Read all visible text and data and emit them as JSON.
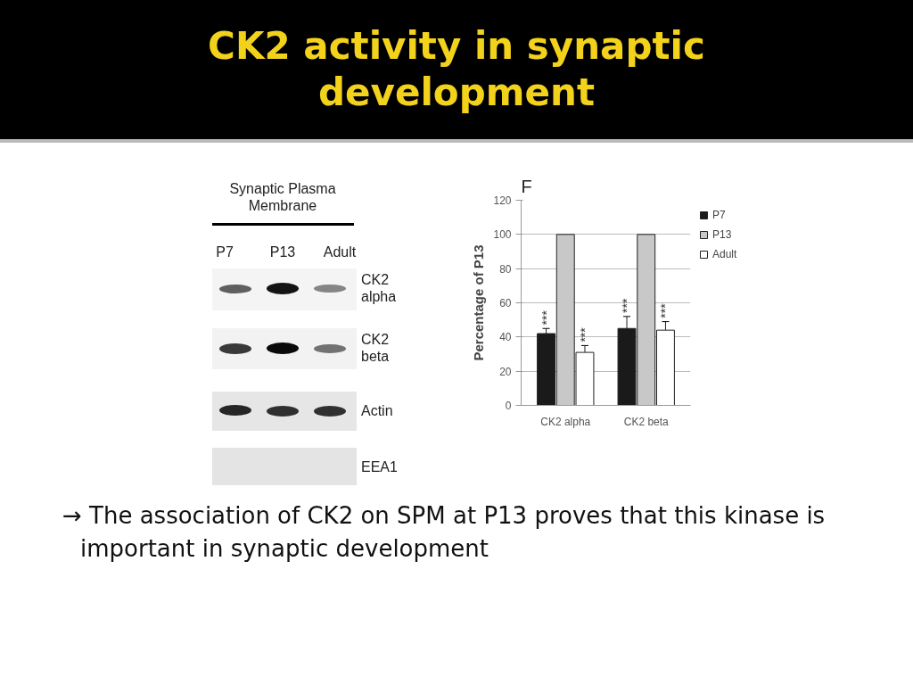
{
  "chart_data": {
    "type": "bar",
    "title": "CK2 activity in  synaptic development",
    "categories": [
      "CK2 alpha",
      "CK2 beta"
    ],
    "series": [
      {
        "name": "P7",
        "color": "#1a1a1a",
        "values": [
          42,
          45
        ],
        "errors": [
          [
            42,
            45
          ],
          [
            45,
            52
          ]
        ]
      },
      {
        "name": "P13",
        "color": "#c8c8c8",
        "values": [
          100,
          100
        ]
      },
      {
        "name": "Adult",
        "color": "#ffffff",
        "values": [
          31,
          44
        ],
        "errors": [
          [
            31,
            35
          ],
          [
            44,
            49
          ]
        ]
      }
    ],
    "ylabel": "Percentage of P13",
    "ylim": [
      0,
      120
    ],
    "yticks": [
      0,
      20,
      40,
      60,
      80,
      100,
      120
    ],
    "grid": "y",
    "legend": "right",
    "annotations": [
      "F",
      "Synaptic Plasma\nMembrane",
      "P7",
      "P13",
      "Adult",
      "CK2\nalpha",
      "CK2\nbeta",
      "Actin",
      "EEA1",
      "***",
      "***",
      "***",
      "***",
      "→ The association of CK2 on SPM at P13 proves that this kinase is important in synaptic development"
    ]
  }
}
